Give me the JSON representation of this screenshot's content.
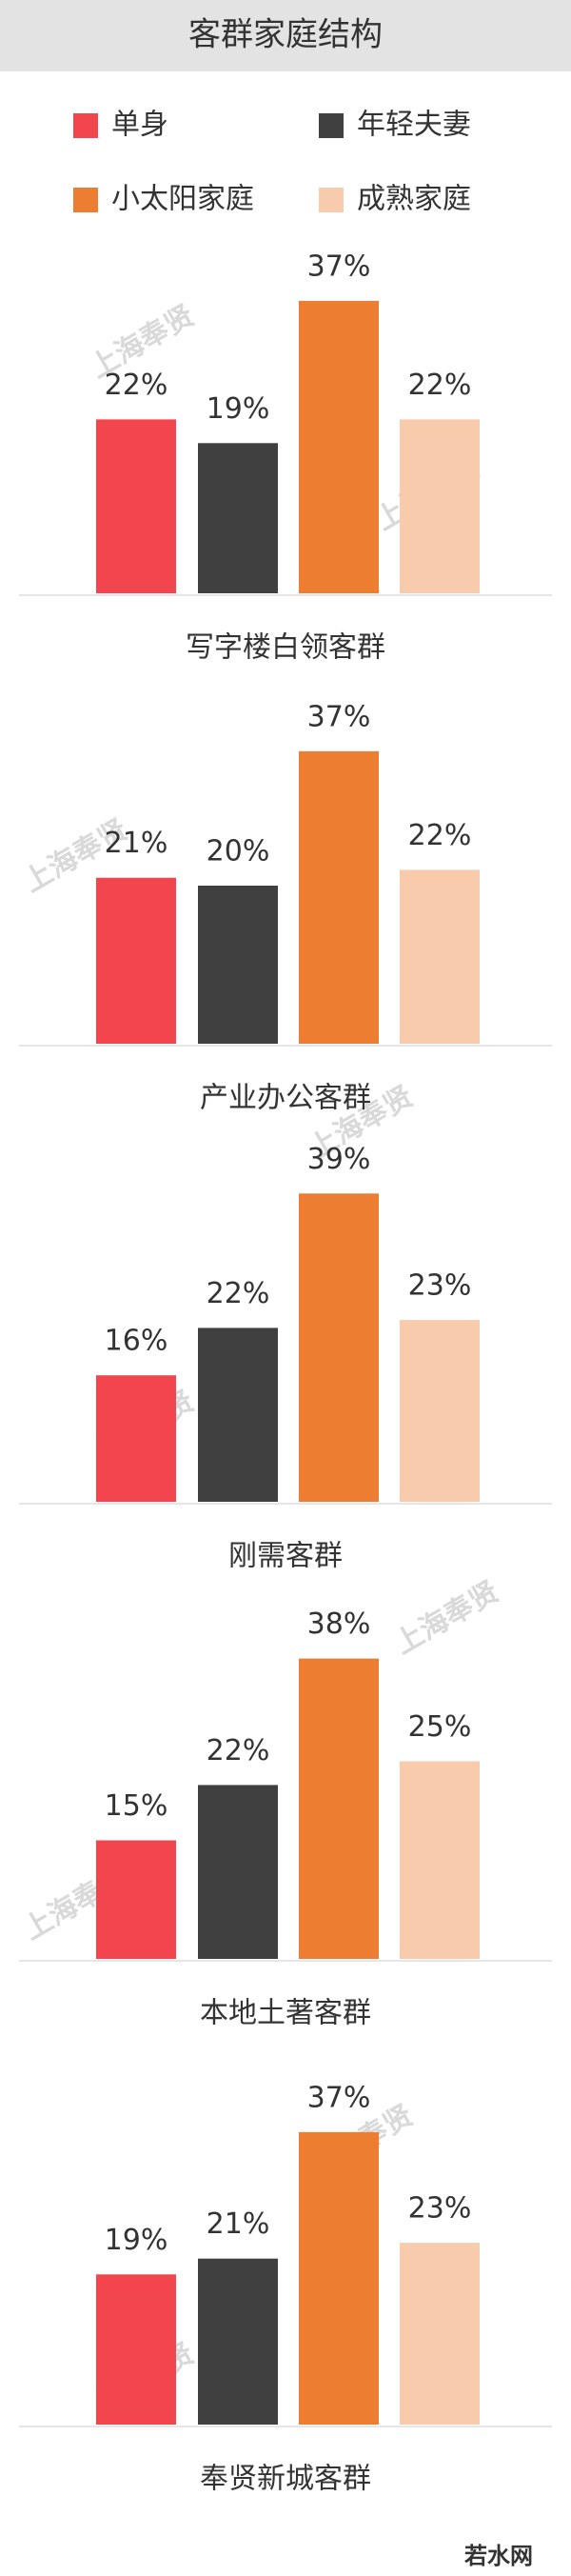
{
  "title": "客群家庭结构",
  "legend": [
    {
      "name": "单身",
      "color": "#f2454d"
    },
    {
      "name": "年轻夫妻",
      "color": "#404040"
    },
    {
      "name": "小太阳家庭",
      "color": "#ed7d31"
    },
    {
      "name": "成熟家庭",
      "color": "#f8cbad"
    }
  ],
  "watermark": "上海奉贤",
  "footer": "若水网",
  "chart_data": [
    {
      "type": "bar",
      "title": "写字楼白领客群",
      "values": [
        22,
        19,
        37,
        22
      ],
      "value_labels": [
        "22%",
        "19%",
        "37%",
        "22%"
      ]
    },
    {
      "type": "bar",
      "title": "产业办公客群",
      "values": [
        21,
        20,
        37,
        22
      ],
      "value_labels": [
        "21%",
        "20%",
        "37%",
        "22%"
      ]
    },
    {
      "type": "bar",
      "title": "刚需客群",
      "values": [
        16,
        22,
        39,
        23
      ],
      "value_labels": [
        "16%",
        "22%",
        "39%",
        "23%"
      ]
    },
    {
      "type": "bar",
      "title": "本地土著客群",
      "values": [
        15,
        22,
        38,
        25
      ],
      "value_labels": [
        "15%",
        "22%",
        "38%",
        "25%"
      ]
    },
    {
      "type": "bar",
      "title": "奉贤新城客群",
      "values": [
        19,
        21,
        37,
        23
      ],
      "value_labels": [
        "19%",
        "21%",
        "37%",
        "23%"
      ]
    }
  ]
}
